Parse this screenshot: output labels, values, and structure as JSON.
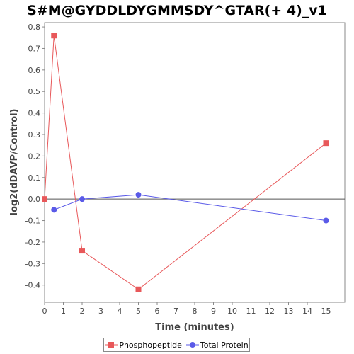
{
  "chart_data": {
    "type": "line",
    "title": "S#M@GYDDLDYGMMSDY^GTAR(+ 4)_v1",
    "xlabel": "Time (minutes)",
    "ylabel": "log2(dDAVP/Control)",
    "xlim": [
      0,
      16
    ],
    "ylim": [
      -0.48,
      0.82
    ],
    "xticks": [
      0,
      1,
      2,
      3,
      4,
      5,
      6,
      7,
      8,
      9,
      10,
      11,
      12,
      13,
      14,
      15
    ],
    "yticks": [
      -0.4,
      -0.3,
      -0.2,
      -0.1,
      0.0,
      0.1,
      0.2,
      0.3,
      0.4,
      0.5,
      0.6,
      0.7,
      0.8
    ],
    "ytick_labels": [
      "-0.4",
      "-0.3",
      "-0.2",
      "-0.1",
      "0.0",
      "0.1",
      "0.2",
      "0.3",
      "0.4",
      "0.5",
      "0.6",
      "0.7",
      "0.8"
    ],
    "zero_line": true,
    "grid": false,
    "legend_position": "bottom",
    "series": [
      {
        "name": "Phosphopeptide",
        "color": "#e8585a",
        "marker": "square",
        "x": [
          0,
          0.5,
          2,
          5,
          15
        ],
        "y": [
          0.0,
          0.76,
          -0.24,
          -0.42,
          0.26
        ]
      },
      {
        "name": "Total Protein",
        "color": "#5a5ae8",
        "marker": "circle",
        "x": [
          0.5,
          2,
          5,
          15
        ],
        "y": [
          -0.05,
          0.0,
          0.02,
          -0.1
        ]
      }
    ]
  }
}
